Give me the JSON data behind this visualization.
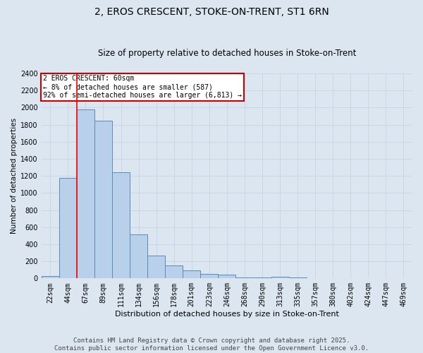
{
  "title": "2, EROS CRESCENT, STOKE-ON-TRENT, ST1 6RN",
  "subtitle": "Size of property relative to detached houses in Stoke-on-Trent",
  "xlabel": "Distribution of detached houses by size in Stoke-on-Trent",
  "ylabel": "Number of detached properties",
  "categories": [
    "22sqm",
    "44sqm",
    "67sqm",
    "89sqm",
    "111sqm",
    "134sqm",
    "156sqm",
    "178sqm",
    "201sqm",
    "223sqm",
    "246sqm",
    "268sqm",
    "290sqm",
    "313sqm",
    "335sqm",
    "357sqm",
    "380sqm",
    "402sqm",
    "424sqm",
    "447sqm",
    "469sqm"
  ],
  "values": [
    25,
    1175,
    1975,
    1850,
    1240,
    515,
    270,
    155,
    90,
    50,
    40,
    15,
    15,
    20,
    10,
    5,
    5,
    5,
    5,
    5,
    5
  ],
  "bar_color": "#b8d0ea",
  "bar_edge_color": "#5a8ab8",
  "grid_color": "#c8d4e4",
  "bg_color": "#dce6f0",
  "red_line_x": 1.5,
  "annotation_text": "2 EROS CRESCENT: 60sqm\n← 8% of detached houses are smaller (587)\n92% of semi-detached houses are larger (6,813) →",
  "annotation_box_color": "#ffffff",
  "annotation_border_color": "#cc0000",
  "footer_line1": "Contains HM Land Registry data © Crown copyright and database right 2025.",
  "footer_line2": "Contains public sector information licensed under the Open Government Licence v3.0.",
  "ylim": [
    0,
    2400
  ],
  "yticks": [
    0,
    200,
    400,
    600,
    800,
    1000,
    1200,
    1400,
    1600,
    1800,
    2000,
    2200,
    2400
  ],
  "title_fontsize": 10,
  "subtitle_fontsize": 8.5,
  "ylabel_fontsize": 7.5,
  "xlabel_fontsize": 8,
  "tick_fontsize": 7,
  "footer_fontsize": 6.5,
  "annotation_fontsize": 7
}
